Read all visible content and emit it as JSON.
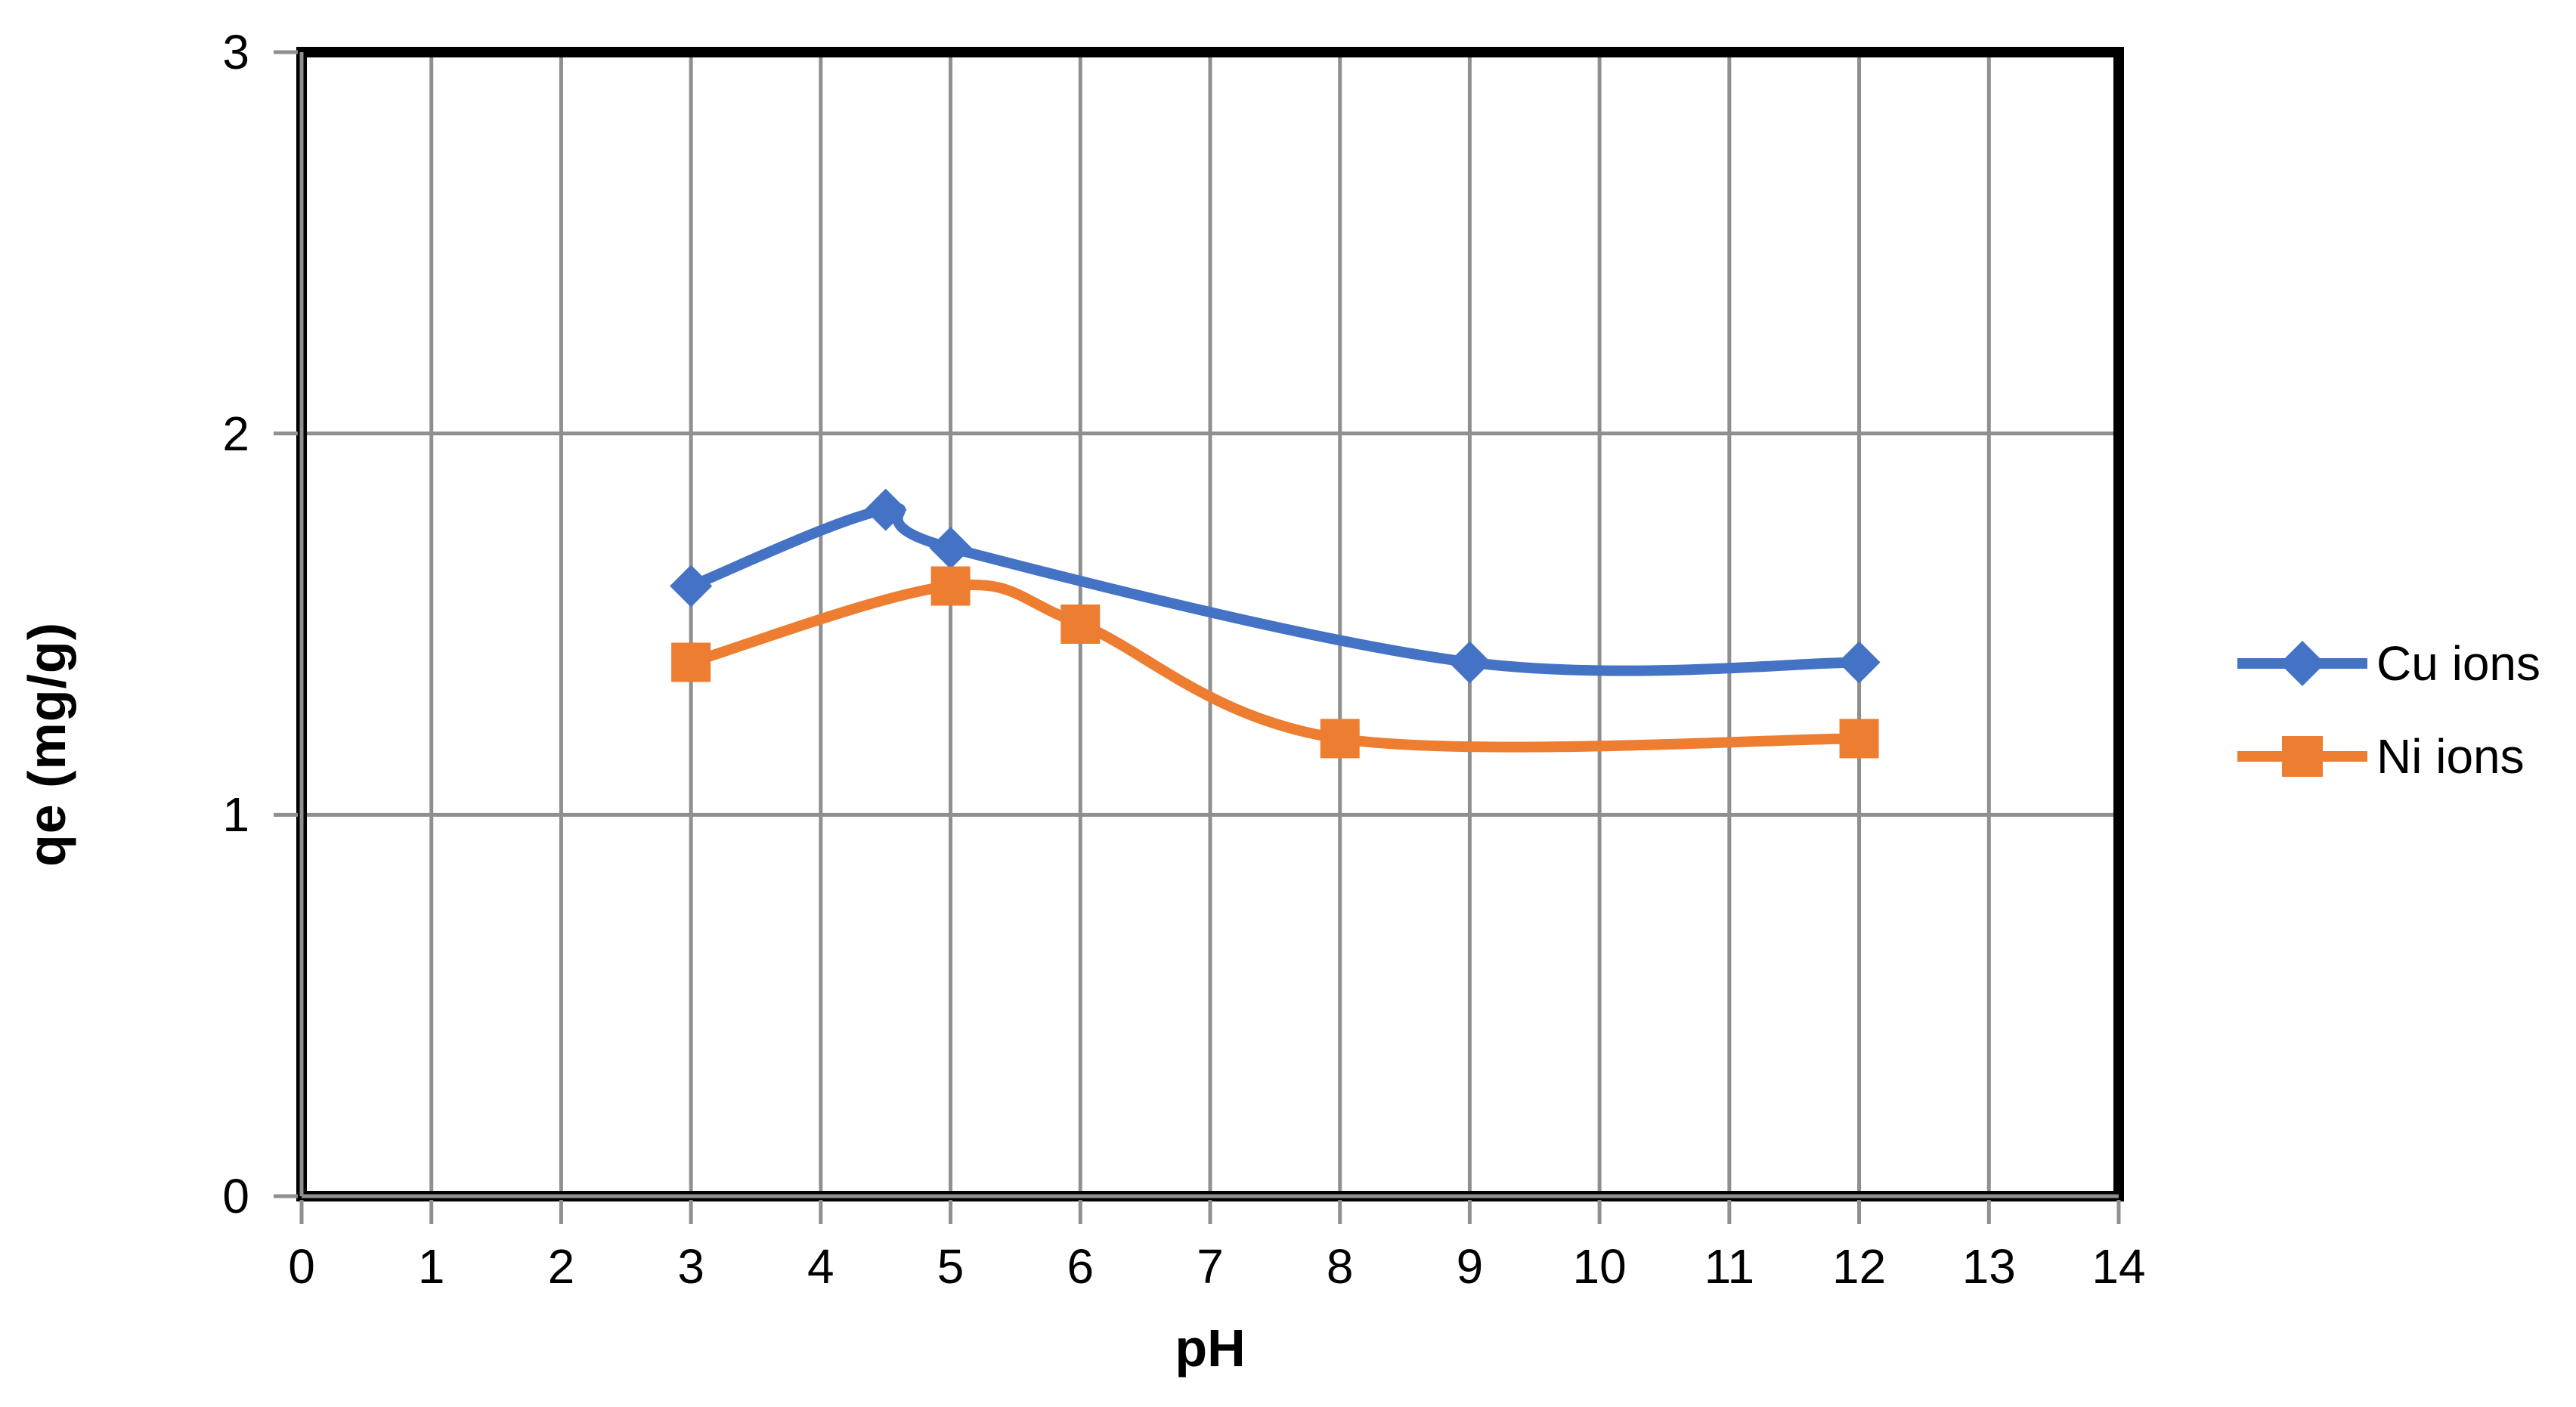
{
  "chart_data": {
    "type": "line",
    "title": "",
    "xlabel": "pH",
    "ylabel": "qe  (mg/g)",
    "xlim": [
      0,
      14
    ],
    "ylim": [
      0,
      3
    ],
    "x_ticks": [
      "0",
      "1",
      "2",
      "3",
      "4",
      "5",
      "6",
      "7",
      "8",
      "9",
      "10",
      "11",
      "12",
      "13",
      "14"
    ],
    "y_ticks": [
      "0",
      "1",
      "2",
      "3"
    ],
    "grid": true,
    "legend_position": "right-middle",
    "gridline_color": "#8F8F8F",
    "axis_border_color": "#000000",
    "text_color": "#000000",
    "series": [
      {
        "name": "Cu ions",
        "color": "#4472C4",
        "marker": "diamond",
        "x": [
          3,
          4.5,
          5,
          9,
          12
        ],
        "y": [
          1.6,
          1.8,
          1.7,
          1.4,
          1.4
        ]
      },
      {
        "name": "Ni ions",
        "color": "#ED7D31",
        "marker": "square",
        "x": [
          3,
          5,
          6,
          8,
          12
        ],
        "y": [
          1.4,
          1.6,
          1.5,
          1.2,
          1.2
        ]
      }
    ]
  }
}
